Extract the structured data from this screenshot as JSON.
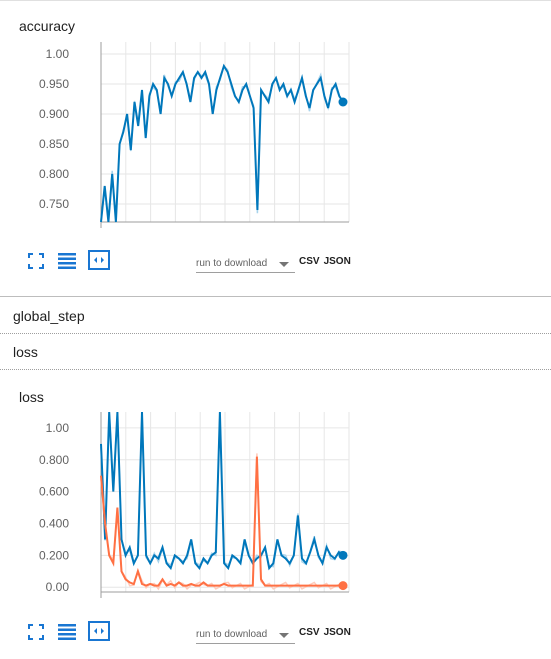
{
  "cards": [
    {
      "title": "accuracy",
      "download_label": "run to download",
      "csv_label": "CSV",
      "json_label": "JSON"
    },
    {
      "title": "loss",
      "download_label": "run to download",
      "csv_label": "CSV",
      "json_label": "JSON"
    }
  ],
  "groups": [
    {
      "label": "global_step"
    },
    {
      "label": "loss"
    }
  ],
  "colors": {
    "blue": "#0077bb",
    "blue_light": "#a8d4ec",
    "orange": "#ff7043",
    "orange_light": "#ffccbc"
  },
  "icons": [
    "expand-icon",
    "list-icon",
    "fit-domain-icon"
  ],
  "chart_data": [
    {
      "type": "line",
      "title": "accuracy",
      "ylim": [
        0.72,
        1.02
      ],
      "yticks": [
        "1.00",
        "0.950",
        "0.900",
        "0.850",
        "0.800",
        "0.750"
      ],
      "ytick_values": [
        1.0,
        0.95,
        0.9,
        0.85,
        0.8,
        0.75
      ],
      "grid": true,
      "series": [
        {
          "color": "#0077bb",
          "values": [
            0.72,
            0.78,
            0.72,
            0.8,
            0.72,
            0.85,
            0.87,
            0.9,
            0.84,
            0.92,
            0.88,
            0.94,
            0.86,
            0.93,
            0.95,
            0.94,
            0.9,
            0.96,
            0.95,
            0.93,
            0.95,
            0.96,
            0.97,
            0.95,
            0.92,
            0.96,
            0.97,
            0.96,
            0.97,
            0.95,
            0.9,
            0.94,
            0.96,
            0.98,
            0.97,
            0.95,
            0.93,
            0.92,
            0.94,
            0.95,
            0.93,
            0.91,
            0.74,
            0.94,
            0.93,
            0.92,
            0.95,
            0.96,
            0.94,
            0.95,
            0.93,
            0.94,
            0.92,
            0.94,
            0.96,
            0.93,
            0.91,
            0.94,
            0.95,
            0.96,
            0.93,
            0.91,
            0.94,
            0.95,
            0.93,
            0.92
          ]
        }
      ]
    },
    {
      "type": "line",
      "title": "loss",
      "ylim": [
        -0.03,
        1.1
      ],
      "yticks": [
        "1.00",
        "0.800",
        "0.600",
        "0.400",
        "0.200",
        "0.00"
      ],
      "ytick_values": [
        1.0,
        0.8,
        0.6,
        0.4,
        0.2,
        0.0
      ],
      "grid": true,
      "series": [
        {
          "color": "#0077bb",
          "values": [
            0.9,
            0.3,
            1.1,
            0.6,
            1.1,
            0.3,
            0.2,
            0.25,
            0.15,
            0.2,
            1.1,
            0.2,
            0.15,
            0.2,
            0.18,
            0.25,
            0.15,
            0.12,
            0.2,
            0.18,
            0.15,
            0.2,
            0.3,
            0.15,
            0.12,
            0.18,
            0.15,
            0.2,
            0.22,
            1.1,
            0.15,
            0.12,
            0.2,
            0.18,
            0.15,
            0.3,
            0.2,
            0.15,
            0.18,
            0.2,
            0.25,
            0.12,
            0.15,
            0.3,
            0.2,
            0.18,
            0.15,
            0.2,
            0.45,
            0.18,
            0.15,
            0.22,
            0.3,
            0.2,
            0.15,
            0.25,
            0.2,
            0.18,
            0.22,
            0.2
          ]
        },
        {
          "color": "#ff7043",
          "values": [
            0.7,
            0.4,
            0.2,
            0.15,
            0.5,
            0.1,
            0.05,
            0.03,
            0.02,
            0.1,
            0.02,
            0.01,
            0.02,
            0.01,
            0.01,
            0.05,
            0.01,
            0.02,
            0.01,
            0.03,
            0.01,
            0.01,
            0.02,
            0.01,
            0.01,
            0.03,
            0.01,
            0.01,
            0.01,
            0.01,
            0.02,
            0.01,
            0.01,
            0.01,
            0.01,
            0.01,
            0.01,
            0.01,
            0.82,
            0.05,
            0.01,
            0.01,
            0.01,
            0.01,
            0.01,
            0.01,
            0.01,
            0.01,
            0.01,
            0.01,
            0.01,
            0.01,
            0.01,
            0.01,
            0.01,
            0.01,
            0.01,
            0.01,
            0.01,
            0.01
          ]
        }
      ]
    }
  ]
}
